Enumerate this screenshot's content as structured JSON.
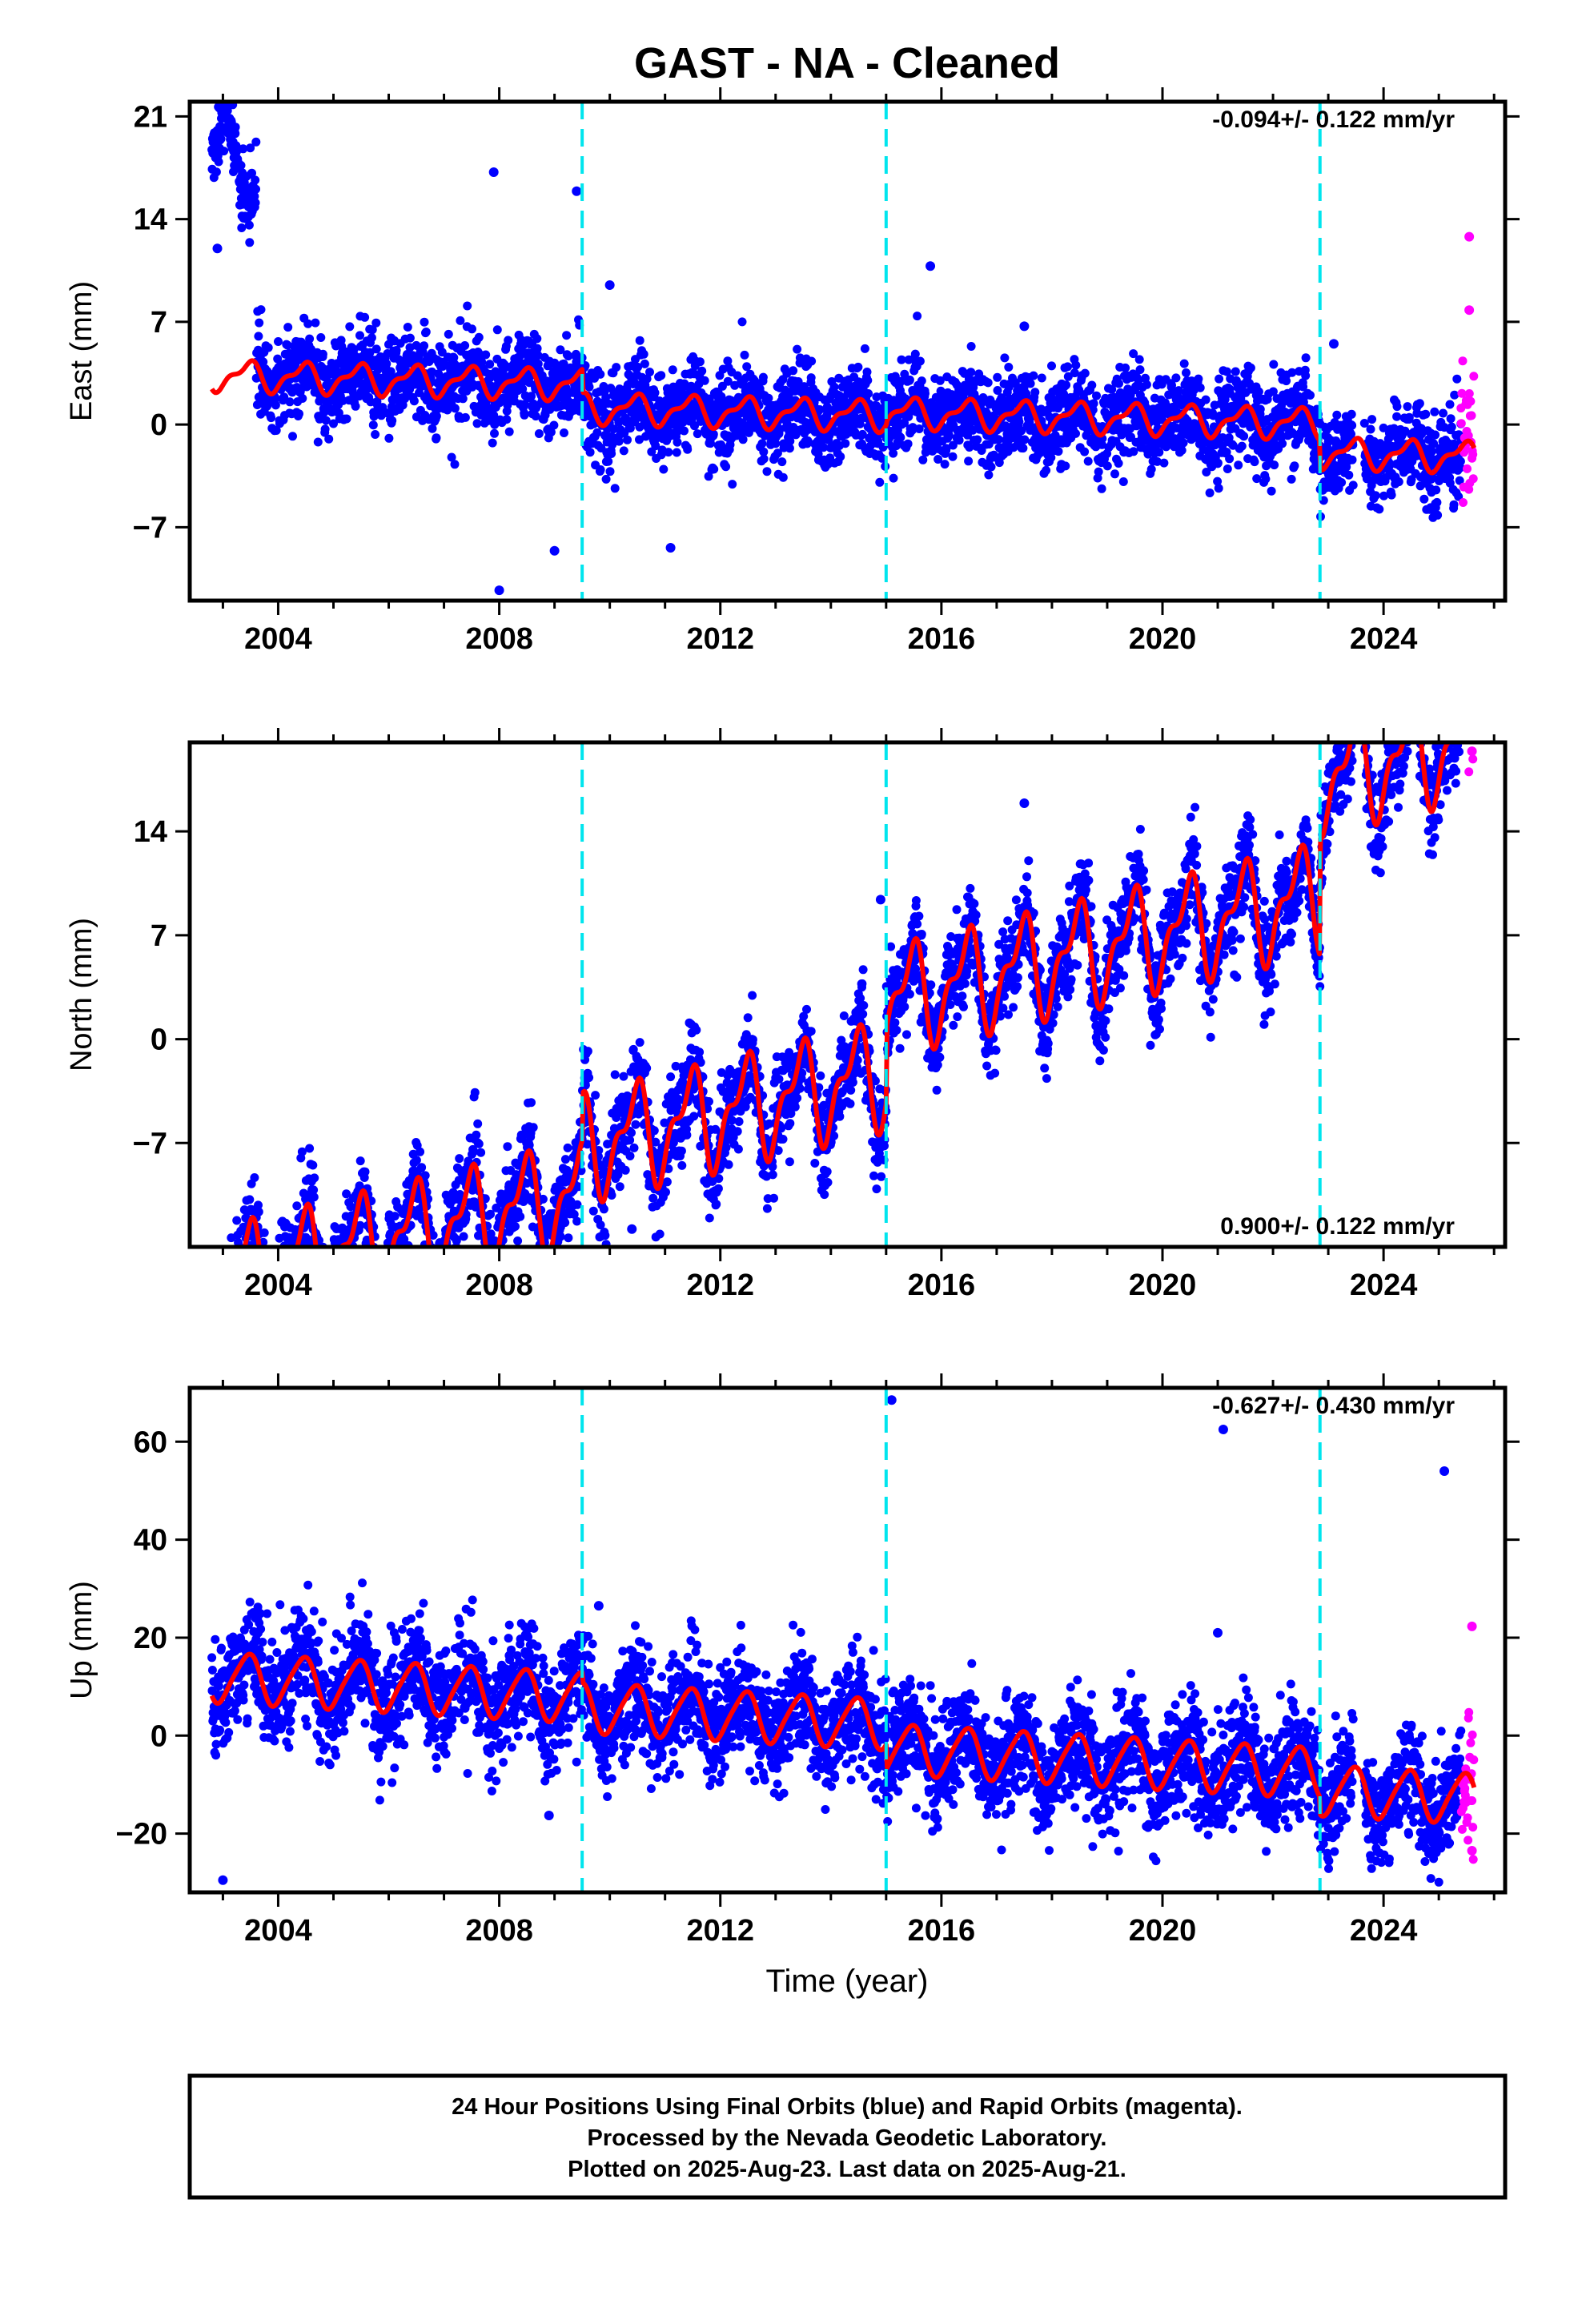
{
  "title": "GAST  - NA - Cleaned",
  "xlabel": "Time (year)",
  "x_ticks": [
    "2004",
    "2008",
    "2012",
    "2016",
    "2020",
    "2024"
  ],
  "footer": {
    "line1": "24 Hour Positions Using Final Orbits (blue) and Rapid Orbits (magenta).",
    "line2": "Processed by the Nevada Geodetic Laboratory.",
    "line3": "Plotted on 2025-Aug-23. Last data on 2025-Aug-21."
  },
  "colors": {
    "final_orbits": "#0000ff",
    "rapid_orbits": "#ff00ff",
    "model": "#ff0000",
    "events": "#00e5ee",
    "axes": "#000000"
  },
  "chart_data": [
    {
      "type": "scatter",
      "component": "east",
      "ylabel": "East (mm)",
      "rate": "-0.094+/- 0.122 mm/yr",
      "rate_position": "top-right",
      "xlim": [
        2002.4,
        2026.2
      ],
      "ylim": [
        -12,
        22
      ],
      "yticks": [
        -7,
        0,
        7,
        14,
        21
      ],
      "ytick_labels": [
        "−7",
        "0",
        "7",
        "14",
        "21"
      ],
      "event_lines": [
        2009.5,
        2015.0,
        2022.85
      ],
      "data_span": [
        2002.8,
        2025.4
      ],
      "rapid_span": [
        2025.4,
        2025.64
      ],
      "gaps": [
        [
          2023.45,
          2023.65
        ]
      ],
      "model": {
        "segments": [
          {
            "t0": 2002.8,
            "t1": 2009.5,
            "offset": 2.3,
            "trend": -0.094,
            "annual_amp": 0.9,
            "semiannual_amp": 0.4
          },
          {
            "t0": 2009.5,
            "t1": 2015.0,
            "offset": 0.7,
            "trend": -0.094,
            "annual_amp": 0.9,
            "semiannual_amp": 0.4
          },
          {
            "t0": 2015.0,
            "t1": 2022.85,
            "offset": 0.9,
            "trend": -0.094,
            "annual_amp": 0.9,
            "semiannual_amp": 0.4
          },
          {
            "t0": 2022.85,
            "t1": 2025.64,
            "offset": -1.1,
            "trend": -0.094,
            "annual_amp": 0.9,
            "semiannual_amp": 0.4
          }
        ],
        "early_block": {
          "t0": 2002.8,
          "t1": 2003.6,
          "values": [
            15,
            21
          ]
        },
        "noise": 1.5
      },
      "outliers": [
        {
          "x": 2002.9,
          "y": 12
        },
        {
          "x": 2007.9,
          "y": 17.2
        },
        {
          "x": 2008.0,
          "y": -11.3
        },
        {
          "x": 2009.4,
          "y": 15.9
        },
        {
          "x": 2010.0,
          "y": 9.5
        },
        {
          "x": 2011.1,
          "y": -8.4
        },
        {
          "x": 2015.8,
          "y": 10.8
        },
        {
          "x": 2017.5,
          "y": 6.7
        },
        {
          "x": 2023.1,
          "y": 5.5
        },
        {
          "x": 2009.0,
          "y": -8.6
        },
        {
          "x": 2025.55,
          "y": 12.8
        },
        {
          "x": 2025.55,
          "y": 7.8
        }
      ]
    },
    {
      "type": "scatter",
      "component": "north",
      "ylabel": "North (mm)",
      "rate": "0.900+/- 0.122 mm/yr",
      "rate_position": "bottom-right",
      "xlim": [
        2002.4,
        2026.2
      ],
      "ylim": [
        -14,
        20
      ],
      "yticks": [
        -7,
        0,
        7,
        14
      ],
      "ytick_labels": [
        "−7",
        "0",
        "7",
        "14"
      ],
      "event_lines": [
        2009.5,
        2015.0,
        2022.85
      ],
      "data_span": [
        2002.8,
        2025.4
      ],
      "rapid_span": [
        2025.4,
        2025.64
      ],
      "gaps": [
        [
          2023.45,
          2023.65
        ]
      ],
      "model": {
        "segments": [
          {
            "t0": 2002.8,
            "t1": 2009.5,
            "offset": -6.3,
            "trend": 0.9,
            "annual_amp": 3.0,
            "semiannual_amp": 1.5
          },
          {
            "t0": 2009.5,
            "t1": 2015.0,
            "offset": -3.2,
            "trend": 0.9,
            "annual_amp": 3.0,
            "semiannual_amp": 1.5
          },
          {
            "t0": 2015.0,
            "t1": 2022.85,
            "offset": 1.7,
            "trend": 0.9,
            "annual_amp": 3.0,
            "semiannual_amp": 1.5
          },
          {
            "t0": 2022.85,
            "t1": 2025.64,
            "offset": 9.6,
            "trend": 0.9,
            "annual_amp": 3.0,
            "semiannual_amp": 1.5
          }
        ],
        "noise": 1.6
      },
      "outliers": [
        {
          "x": 2009.1,
          "y": -13.3
        },
        {
          "x": 2010.4,
          "y": -12.8
        },
        {
          "x": 2017.5,
          "y": 15.9
        },
        {
          "x": 2014.9,
          "y": 9.4
        },
        {
          "x": 2025.6,
          "y": 19.4
        }
      ]
    },
    {
      "type": "scatter",
      "component": "up",
      "ylabel": "Up (mm)",
      "rate": "-0.627+/- 0.430 mm/yr",
      "rate_position": "top-right",
      "xlim": [
        2002.4,
        2026.2
      ],
      "ylim": [
        -32,
        71
      ],
      "yticks": [
        -20,
        0,
        20,
        40,
        60
      ],
      "ytick_labels": [
        "−20",
        "0",
        "20",
        "40",
        "60"
      ],
      "event_lines": [
        2009.5,
        2015.0,
        2022.85
      ],
      "data_span": [
        2002.8,
        2025.4
      ],
      "rapid_span": [
        2025.4,
        2025.64
      ],
      "gaps": [
        [
          2023.45,
          2023.65
        ]
      ],
      "model": {
        "segments": [
          {
            "t0": 2002.8,
            "t1": 2009.5,
            "offset": 5.0,
            "trend": -0.627,
            "annual_amp": 5.0,
            "semiannual_amp": 0.8
          },
          {
            "t0": 2009.5,
            "t1": 2015.0,
            "offset": 3.0,
            "trend": -0.627,
            "annual_amp": 5.0,
            "semiannual_amp": 0.8
          },
          {
            "t0": 2015.0,
            "t1": 2022.85,
            "offset": -2.0,
            "trend": -0.627,
            "annual_amp": 5.0,
            "semiannual_amp": 0.8
          },
          {
            "t0": 2022.85,
            "t1": 2025.64,
            "offset": -5.5,
            "trend": -0.627,
            "annual_amp": 5.0,
            "semiannual_amp": 0.8
          }
        ],
        "noise": 5.5
      },
      "outliers": [
        {
          "x": 2015.1,
          "y": 68.5
        },
        {
          "x": 2021.1,
          "y": 62.5
        },
        {
          "x": 2025.1,
          "y": 54
        },
        {
          "x": 2003.0,
          "y": -29.5
        },
        {
          "x": 2009.8,
          "y": 26.5
        },
        {
          "x": 2008.9,
          "y": -16.3
        },
        {
          "x": 2021.0,
          "y": 21
        },
        {
          "x": 2025.6,
          "y": 22.3
        },
        {
          "x": 2025.6,
          "y": -23.5
        }
      ]
    }
  ]
}
